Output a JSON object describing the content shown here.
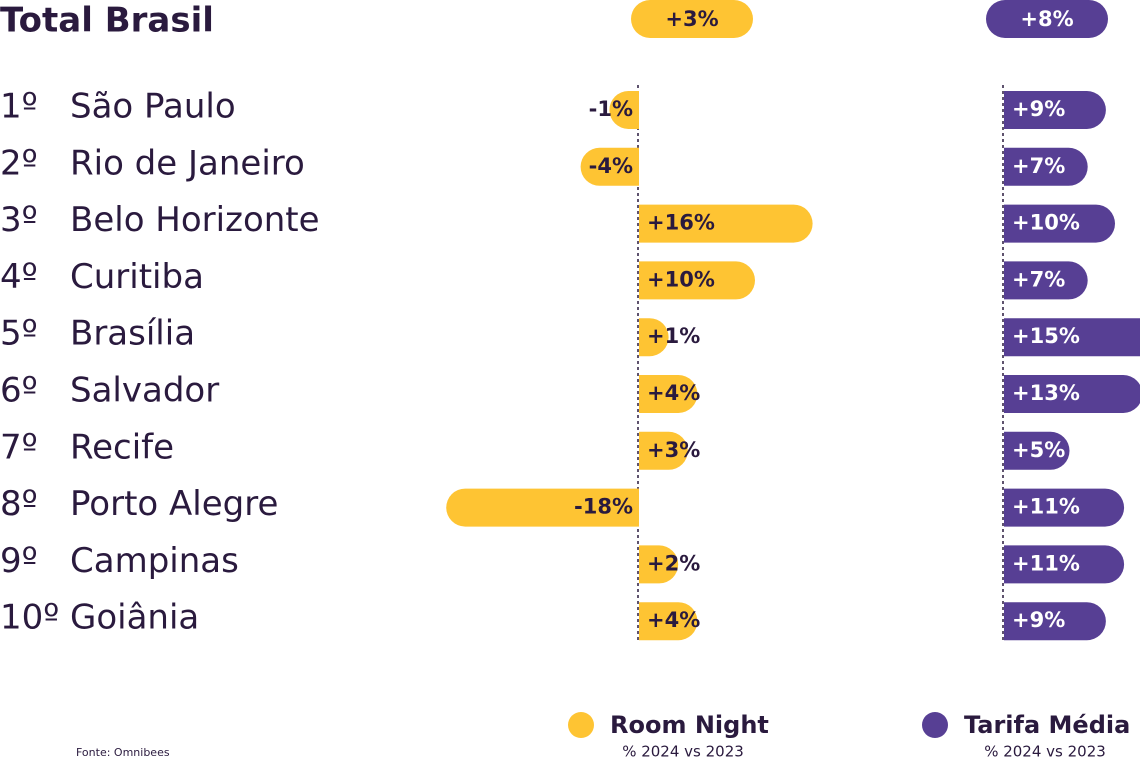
{
  "chart_data": {
    "type": "bar",
    "orientation": "horizontal",
    "title": "Total Brasil",
    "ranks": [
      "1º",
      "2º",
      "3º",
      "4º",
      "5º",
      "6º",
      "7º",
      "8º",
      "9º",
      "10º"
    ],
    "categories": [
      "São Paulo",
      "Rio de Janeiro",
      "Belo Horizonte",
      "Curitiba",
      "Brasília",
      "Salvador",
      "Recife",
      "Porto Alegre",
      "Campinas",
      "Goiânia"
    ],
    "series": [
      {
        "name": "Room Night",
        "subtitle": "% 2024 vs 2023",
        "color": "#fec433",
        "total": 3,
        "total_label": "+3%",
        "values": [
          -1,
          -4,
          16,
          10,
          1,
          4,
          3,
          -18,
          2,
          4
        ],
        "value_labels": [
          "-1%",
          "-4%",
          "+16%",
          "+10%",
          "+1%",
          "+4%",
          "+3%",
          "-18%",
          "+2%",
          "+4%"
        ]
      },
      {
        "name": "Tarifa Média",
        "subtitle": "% 2024 vs 2023",
        "color": "#573f94",
        "total": 8,
        "total_label": "+8%",
        "values": [
          9,
          7,
          10,
          7,
          15,
          13,
          5,
          11,
          11,
          9
        ],
        "value_labels": [
          "+9%",
          "+7%",
          "+10%",
          "+7%",
          "+15%",
          "+13%",
          "+5%",
          "+11%",
          "+11%",
          "+9%"
        ]
      }
    ],
    "source": "Fonte: Omnibees"
  }
}
